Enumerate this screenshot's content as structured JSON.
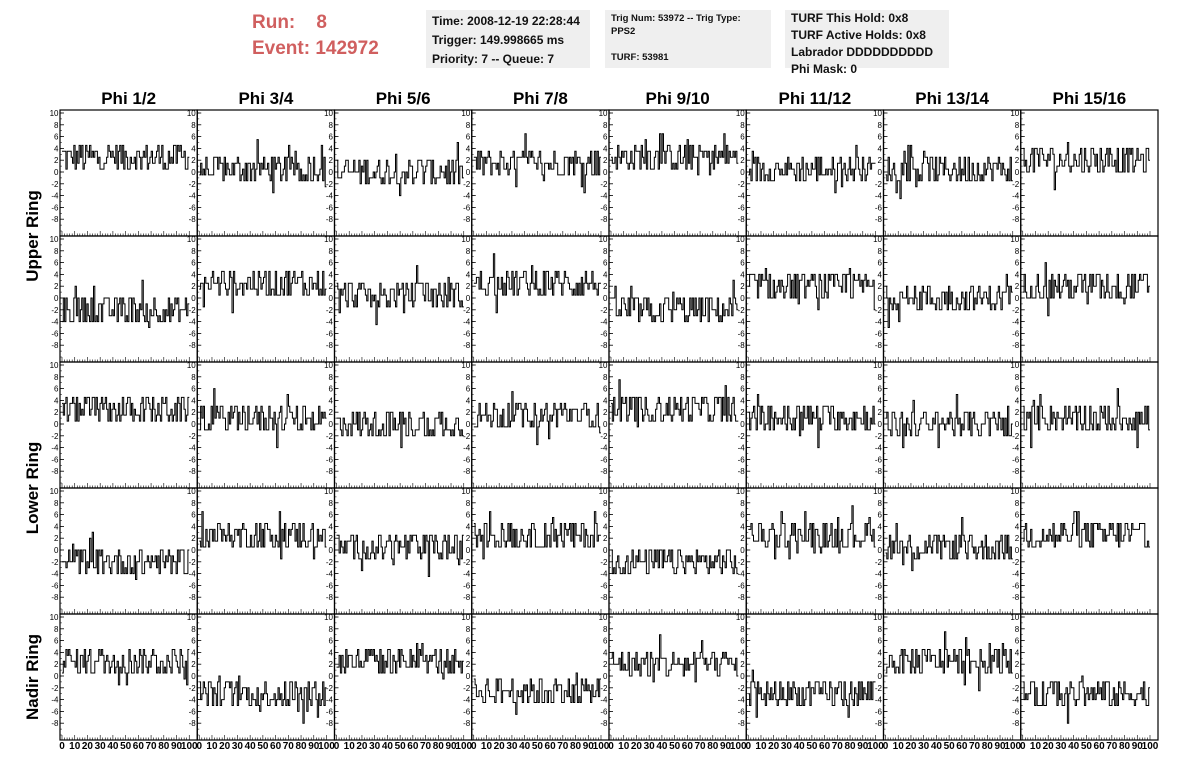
{
  "header": {
    "run_label": "Run:",
    "run_value": "8",
    "event_label": "Event:",
    "event_value": "142972",
    "time": "Time: 2008-12-19 22:28:44",
    "trigger": "Trigger: 149.998665 ms",
    "priority": "Priority: 7 -- Queue: 7",
    "trig_num": "Trig Num: 53972 -- Trig Type: PPS2",
    "turf": "TURF: 53981",
    "turf_this_hold": "TURF This Hold: 0x8",
    "turf_active_holds": "TURF Active Holds: 0x8",
    "labrador": "Labrador DDDDDDDDDD",
    "phi_mask": "Phi Mask: 0"
  },
  "columns": [
    "Phi 1/2",
    "Phi 3/4",
    "Phi 5/6",
    "Phi 7/8",
    "Phi 9/10",
    "Phi 11/12",
    "Phi 13/14",
    "Phi 15/16"
  ],
  "ring_labels": [
    {
      "label": "Upper Ring",
      "rows": [
        0,
        1
      ]
    },
    {
      "label": "Lower Ring",
      "rows": [
        2,
        3
      ]
    },
    {
      "label": "Nadir Ring",
      "rows": [
        4
      ]
    }
  ],
  "colors": {
    "run_text": "#d05f5f",
    "info_bg": "#efefef",
    "trace": "#000000"
  },
  "chart_data": {
    "type": "line",
    "rows": 5,
    "cols": 8,
    "x_range": [
      0,
      100
    ],
    "y_range": [
      -10,
      10
    ],
    "y_ticks": [
      10,
      8,
      6,
      4,
      2,
      0,
      -2,
      -4,
      -6,
      -8
    ],
    "x_ticks": [
      "0",
      "10",
      "20",
      "30",
      "40",
      "50",
      "60",
      "70",
      "80",
      "90",
      "100"
    ],
    "samples_per_trace": 97,
    "trace_baselines": [
      [
        2.5,
        0.5,
        0.0,
        1.5,
        2.5,
        0.5,
        0.5,
        2.0
      ],
      [
        -2.0,
        2.5,
        0.5,
        2.5,
        -2.0,
        2.0,
        0.0,
        2.0
      ],
      [
        2.5,
        1.0,
        0.0,
        1.5,
        2.5,
        1.0,
        0.0,
        1.0
      ],
      [
        -2.0,
        2.5,
        0.5,
        2.5,
        -2.0,
        2.5,
        0.5,
        2.5
      ],
      [
        2.5,
        -3.0,
        2.5,
        -2.5,
        2.0,
        -3.0,
        2.5,
        -3.0
      ]
    ],
    "trace_spread": 2.5
  }
}
